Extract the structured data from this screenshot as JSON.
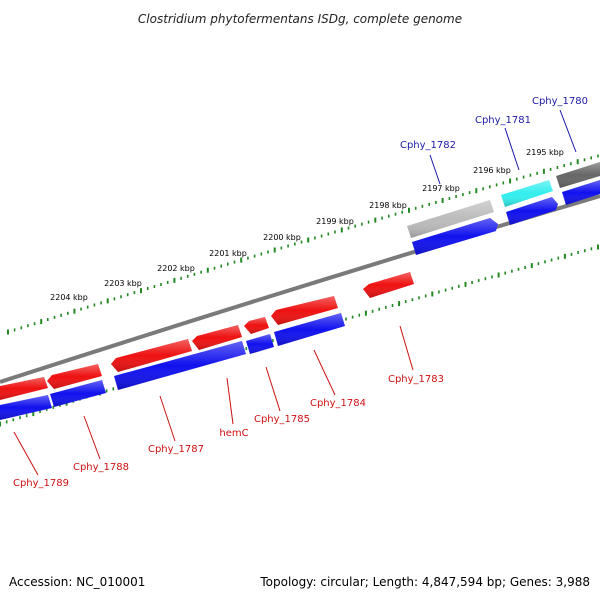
{
  "title": "Clostridium phytofermentans ISDg, complete genome",
  "footer": {
    "accession": "Accession: NC_010001",
    "summary": "Topology: circular; Length: 4,847,594 bp; Genes: 3,988"
  },
  "scale_labels": [
    "2195 kbp",
    "2196 kbp",
    "2197 kbp",
    "2198 kbp",
    "2199 kbp",
    "2200 kbp",
    "2201 kbp",
    "2202 kbp",
    "2203 kbp",
    "2204 kbp"
  ],
  "gene_labels": {
    "above": [
      "Cphy_1780",
      "Cphy_1781",
      "Cphy_1782"
    ],
    "below": [
      "Cphy_1783",
      "Cphy_1784",
      "Cphy_1785",
      "hemC",
      "Cphy_1787",
      "Cphy_1788",
      "Cphy_1789"
    ]
  },
  "colors": {
    "gene_forward": "#ee1111",
    "cds": "#1111ee",
    "tick": "#228822",
    "label_above": "#1a1aa6",
    "label_below": "#cc1111",
    "backbone": "#888888",
    "highlight_cyan": "#33eeee",
    "gray_light": "#bbbbbb",
    "gray_dark": "#666666"
  }
}
